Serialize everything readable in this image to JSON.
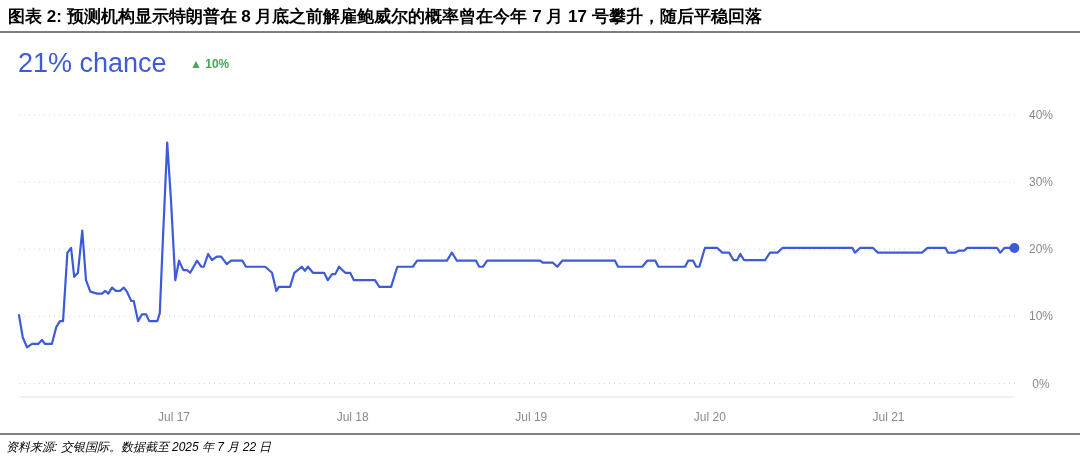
{
  "chart_data": {
    "type": "line",
    "title": "图表 2: 预测机构显示特朗普在 8 月底之前解雇鲍威尔的概率曾在今年 7 月 17 号攀升，随后平稳回落",
    "annotations": [
      "21% chance",
      "▲ 10%",
      "资料来源: 交银国际。数据截至 2025 年 7 月 22 日"
    ],
    "xlim": [
      "2025-07-16T03:10",
      "2025-07-21T17:00"
    ],
    "xticks": [
      {
        "value": "2025-07-17",
        "label": "Jul 17"
      },
      {
        "value": "2025-07-18",
        "label": "Jul 18"
      },
      {
        "value": "2025-07-19",
        "label": "Jul 19"
      },
      {
        "value": "2025-07-20",
        "label": "Jul 20"
      },
      {
        "value": "2025-07-21",
        "label": "Jul 21"
      }
    ],
    "ylim": [
      -2,
      40
    ],
    "yticks": [
      {
        "value": 0,
        "label": "0%"
      },
      {
        "value": 10,
        "label": "10%"
      },
      {
        "value": 20,
        "label": "20%"
      },
      {
        "value": 30,
        "label": "30%"
      },
      {
        "value": 40,
        "label": "40%"
      }
    ],
    "grid": "y",
    "line_style": "solid",
    "series": [
      {
        "type": "line",
        "color": "#3d5bd9",
        "x": [
          "2025-07-16T03:10",
          "2025-07-16T03:40",
          "2025-07-16T04:15",
          "2025-07-16T04:55",
          "2025-07-16T05:45",
          "2025-07-16T06:15",
          "2025-07-16T06:40",
          "2025-07-16T07:35",
          "2025-07-16T08:10",
          "2025-07-16T08:40",
          "2025-07-16T09:05",
          "2025-07-16T09:40",
          "2025-07-16T10:10",
          "2025-07-16T10:35",
          "2025-07-16T11:05",
          "2025-07-16T11:40",
          "2025-07-16T12:10",
          "2025-07-16T12:45",
          "2025-07-16T13:40",
          "2025-07-16T14:20",
          "2025-07-16T14:45",
          "2025-07-16T15:10",
          "2025-07-16T15:40",
          "2025-07-16T16:10",
          "2025-07-16T16:45",
          "2025-07-16T17:15",
          "2025-07-16T17:40",
          "2025-07-16T18:15",
          "2025-07-16T18:35",
          "2025-07-16T19:10",
          "2025-07-16T19:40",
          "2025-07-16T20:15",
          "2025-07-16T20:40",
          "2025-07-16T21:45",
          "2025-07-16T22:05",
          "2025-07-16T22:30",
          "2025-07-16T23:05",
          "2025-07-16T23:35",
          "2025-07-17T00:10",
          "2025-07-17T00:40",
          "2025-07-17T01:15",
          "2025-07-17T01:45",
          "2025-07-17T02:10",
          "2025-07-17T03:05",
          "2025-07-17T03:40",
          "2025-07-17T04:00",
          "2025-07-17T04:35",
          "2025-07-17T05:05",
          "2025-07-17T05:45",
          "2025-07-17T06:20",
          "2025-07-17T07:05",
          "2025-07-17T07:40",
          "2025-07-17T09:10",
          "2025-07-17T09:40",
          "2025-07-17T12:15",
          "2025-07-17T13:10",
          "2025-07-17T13:45",
          "2025-07-17T14:05",
          "2025-07-17T15:35",
          "2025-07-17T16:10",
          "2025-07-17T17:10",
          "2025-07-17T17:35",
          "2025-07-17T18:00",
          "2025-07-17T18:40",
          "2025-07-17T20:10",
          "2025-07-17T20:40",
          "2025-07-17T21:15",
          "2025-07-17T21:40",
          "2025-07-17T22:10",
          "2025-07-17T23:00",
          "2025-07-17T23:40",
          "2025-07-18T00:10",
          "2025-07-18T03:00",
          "2025-07-18T03:35",
          "2025-07-18T05:10",
          "2025-07-18T06:00",
          "2025-07-18T08:05",
          "2025-07-18T08:40",
          "2025-07-18T12:40",
          "2025-07-18T13:20",
          "2025-07-18T14:00",
          "2025-07-18T16:35",
          "2025-07-18T17:00",
          "2025-07-18T17:30",
          "2025-07-18T18:05",
          "2025-07-19T01:10",
          "2025-07-19T01:35",
          "2025-07-19T02:55",
          "2025-07-19T03:30",
          "2025-07-19T04:10",
          "2025-07-19T11:15",
          "2025-07-19T11:40",
          "2025-07-19T14:55",
          "2025-07-19T15:35",
          "2025-07-19T16:40",
          "2025-07-19T17:05",
          "2025-07-19T20:40",
          "2025-07-19T21:05",
          "2025-07-19T21:45",
          "2025-07-19T22:10",
          "2025-07-19T22:35",
          "2025-07-19T23:20",
          "2025-07-20T01:00",
          "2025-07-20T01:40",
          "2025-07-20T02:35",
          "2025-07-20T03:10",
          "2025-07-20T03:40",
          "2025-07-20T04:05",
          "2025-07-20T04:35",
          "2025-07-20T07:25",
          "2025-07-20T08:05",
          "2025-07-20T09:05",
          "2025-07-20T09:45",
          "2025-07-20T19:10",
          "2025-07-20T19:30",
          "2025-07-20T20:10",
          "2025-07-20T21:55",
          "2025-07-20T22:35",
          "2025-07-21T04:30",
          "2025-07-21T05:15",
          "2025-07-21T07:40",
          "2025-07-21T08:00",
          "2025-07-21T09:00",
          "2025-07-21T09:25",
          "2025-07-21T10:10",
          "2025-07-21T10:35",
          "2025-07-21T14:35",
          "2025-07-21T15:00",
          "2025-07-21T15:35",
          "2025-07-21T16:55"
        ],
        "values": [
          10.2,
          6.9,
          5.4,
          5.9,
          5.9,
          6.5,
          5.9,
          5.9,
          8.4,
          9.3,
          9.3,
          19.5,
          20.2,
          15.9,
          16.5,
          22.8,
          15.4,
          13.7,
          13.4,
          13.4,
          13.8,
          13.4,
          14.3,
          13.8,
          13.8,
          14.3,
          13.7,
          12.3,
          12.3,
          9.3,
          10.3,
          10.3,
          9.3,
          9.3,
          10.5,
          21.4,
          35.9,
          27.4,
          15.4,
          18.3,
          16.9,
          16.9,
          16.5,
          18.3,
          17.4,
          17.4,
          19.3,
          18.4,
          18.9,
          18.9,
          17.8,
          18.3,
          18.3,
          17.4,
          17.4,
          16.5,
          13.8,
          14.4,
          14.4,
          16.5,
          17.4,
          16.8,
          17.4,
          16.5,
          16.5,
          15.4,
          16.3,
          16.3,
          17.4,
          16.5,
          16.5,
          15.4,
          15.4,
          14.4,
          14.4,
          17.4,
          17.4,
          18.3,
          18.3,
          19.5,
          18.3,
          18.3,
          17.4,
          17.4,
          18.3,
          18.3,
          18.0,
          18.0,
          17.4,
          18.3,
          18.3,
          17.4,
          17.4,
          18.3,
          18.3,
          17.4,
          17.4,
          18.3,
          18.3,
          17.4,
          17.4,
          20.2,
          20.2,
          19.5,
          19.5,
          18.4,
          18.4,
          19.3,
          18.4,
          18.4,
          19.5,
          19.5,
          20.2,
          20.2,
          19.5,
          20.2,
          20.2,
          19.5,
          19.5,
          20.2,
          20.2,
          19.5,
          19.5,
          19.8,
          19.8,
          20.2,
          20.2,
          19.5,
          20.2,
          20.2
        ]
      },
      {
        "type": "scatter",
        "color": "#3d5bd9",
        "marker": "circle",
        "x": [
          "2025-07-21T16:55"
        ],
        "values": [
          20.2
        ]
      }
    ]
  }
}
